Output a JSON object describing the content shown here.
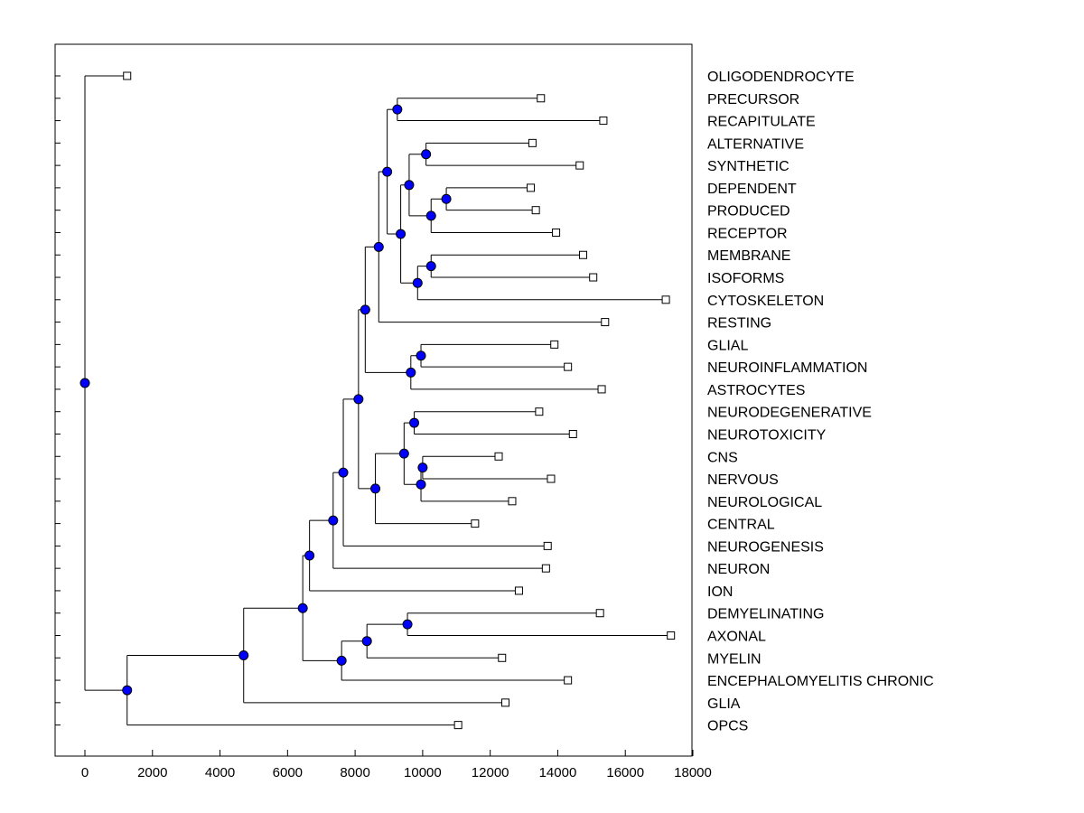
{
  "chart_data": {
    "type": "dendrogram",
    "title": "",
    "xlabel": "",
    "ylabel": "",
    "xlim": [
      -900,
      18100
    ],
    "x_ticks": [
      0,
      2000,
      4000,
      6000,
      8000,
      10000,
      12000,
      14000,
      16000,
      18000
    ],
    "root_x": 0,
    "leaves": [
      {
        "name": "OLIGODENDROCYTE",
        "x": 1250
      },
      {
        "name": "PRECURSOR",
        "x": 13500
      },
      {
        "name": "RECAPITULATE",
        "x": 15350
      },
      {
        "name": "ALTERNATIVE",
        "x": 13250
      },
      {
        "name": "SYNTHETIC",
        "x": 14650
      },
      {
        "name": "DEPENDENT",
        "x": 13200
      },
      {
        "name": "PRODUCED",
        "x": 13350
      },
      {
        "name": "RECEPTOR",
        "x": 13950
      },
      {
        "name": "MEMBRANE",
        "x": 14750
      },
      {
        "name": "ISOFORMS",
        "x": 15050
      },
      {
        "name": "CYTOSKELETON",
        "x": 17200
      },
      {
        "name": "RESTING",
        "x": 15400
      },
      {
        "name": "GLIAL",
        "x": 13900
      },
      {
        "name": "NEUROINFLAMMATION",
        "x": 14300
      },
      {
        "name": "ASTROCYTES",
        "x": 15300
      },
      {
        "name": "NEURODEGENERATIVE",
        "x": 13450
      },
      {
        "name": "NEUROTOXICITY",
        "x": 14450
      },
      {
        "name": "CNS",
        "x": 12250
      },
      {
        "name": "NERVOUS",
        "x": 13800
      },
      {
        "name": "NEUROLOGICAL",
        "x": 12650
      },
      {
        "name": "CENTRAL",
        "x": 11550
      },
      {
        "name": "NEUROGENESIS",
        "x": 13700
      },
      {
        "name": "NEURON",
        "x": 13650
      },
      {
        "name": "ION",
        "x": 12850
      },
      {
        "name": "DEMYELINATING",
        "x": 15250
      },
      {
        "name": "AXONAL",
        "x": 17350
      },
      {
        "name": "MYELIN",
        "x": 12350
      },
      {
        "name": "ENCEPHALOMYELITIS CHRONIC",
        "x": 14300
      },
      {
        "name": "GLIA",
        "x": 12450
      },
      {
        "name": "OPCS",
        "x": 11050
      }
    ],
    "merges": [
      {
        "id": "m1",
        "x": 10700,
        "children": [
          "DEPENDENT",
          "PRODUCED"
        ]
      },
      {
        "id": "m2",
        "x": 10250,
        "children": [
          "m1",
          "RECEPTOR"
        ]
      },
      {
        "id": "m3",
        "x": 10100,
        "children": [
          "ALTERNATIVE",
          "SYNTHETIC"
        ]
      },
      {
        "id": "m4",
        "x": 9600,
        "children": [
          "m3",
          "m2"
        ]
      },
      {
        "id": "m5",
        "x": 10250,
        "children": [
          "MEMBRANE",
          "ISOFORMS"
        ]
      },
      {
        "id": "m6",
        "x": 9850,
        "children": [
          "m5",
          "CYTOSKELETON"
        ]
      },
      {
        "id": "m7",
        "x": 9350,
        "children": [
          "m4",
          "m6"
        ]
      },
      {
        "id": "m8",
        "x": 9250,
        "children": [
          "PRECURSOR",
          "RECAPITULATE"
        ]
      },
      {
        "id": "m9",
        "x": 8950,
        "children": [
          "m8",
          "m7"
        ]
      },
      {
        "id": "m10",
        "x": 8700,
        "children": [
          "m9",
          "RESTING"
        ]
      },
      {
        "id": "m11",
        "x": 9950,
        "children": [
          "GLIAL",
          "NEUROINFLAMMATION"
        ]
      },
      {
        "id": "m12",
        "x": 9650,
        "children": [
          "m11",
          "ASTROCYTES"
        ]
      },
      {
        "id": "m13",
        "x": 8300,
        "children": [
          "m10",
          "m12"
        ]
      },
      {
        "id": "m14",
        "x": 9750,
        "children": [
          "NEURODEGENERATIVE",
          "NEUROTOXICITY"
        ]
      },
      {
        "id": "m15",
        "x": 10000,
        "children": [
          "CNS",
          "NERVOUS"
        ]
      },
      {
        "id": "m16",
        "x": 9950,
        "children": [
          "m15",
          "NEUROLOGICAL"
        ]
      },
      {
        "id": "m17",
        "x": 9450,
        "children": [
          "m14",
          "m16"
        ]
      },
      {
        "id": "m18",
        "x": 8600,
        "children": [
          "m17",
          "CENTRAL"
        ]
      },
      {
        "id": "m19",
        "x": 8100,
        "children": [
          "m13",
          "m18"
        ]
      },
      {
        "id": "m20",
        "x": 7650,
        "children": [
          "m19",
          "NEUROGENESIS"
        ]
      },
      {
        "id": "m21",
        "x": 7350,
        "children": [
          "m20",
          "NEURON"
        ]
      },
      {
        "id": "m22",
        "x": 6650,
        "children": [
          "m21",
          "ION"
        ]
      },
      {
        "id": "m23",
        "x": 9550,
        "children": [
          "DEMYELINATING",
          "AXONAL"
        ]
      },
      {
        "id": "m24",
        "x": 8350,
        "children": [
          "m23",
          "MYELIN"
        ]
      },
      {
        "id": "m25",
        "x": 7600,
        "children": [
          "m24",
          "ENCEPHALOMYELITIS CHRONIC"
        ]
      },
      {
        "id": "m26",
        "x": 6450,
        "children": [
          "m22",
          "m25"
        ]
      },
      {
        "id": "m27",
        "x": 4700,
        "children": [
          "m26",
          "GLIA"
        ]
      },
      {
        "id": "m28",
        "x": 1250,
        "children": [
          "m27",
          "OPCS"
        ]
      },
      {
        "id": "root",
        "x": 0,
        "children": [
          "OLIGODENDROCYTE",
          "m28"
        ]
      }
    ]
  },
  "colors": {
    "node_fill": "#0000ff",
    "node_stroke": "#000000",
    "leaf_fill": "#ffffff",
    "line": "#000000",
    "background": "#ffffff"
  }
}
